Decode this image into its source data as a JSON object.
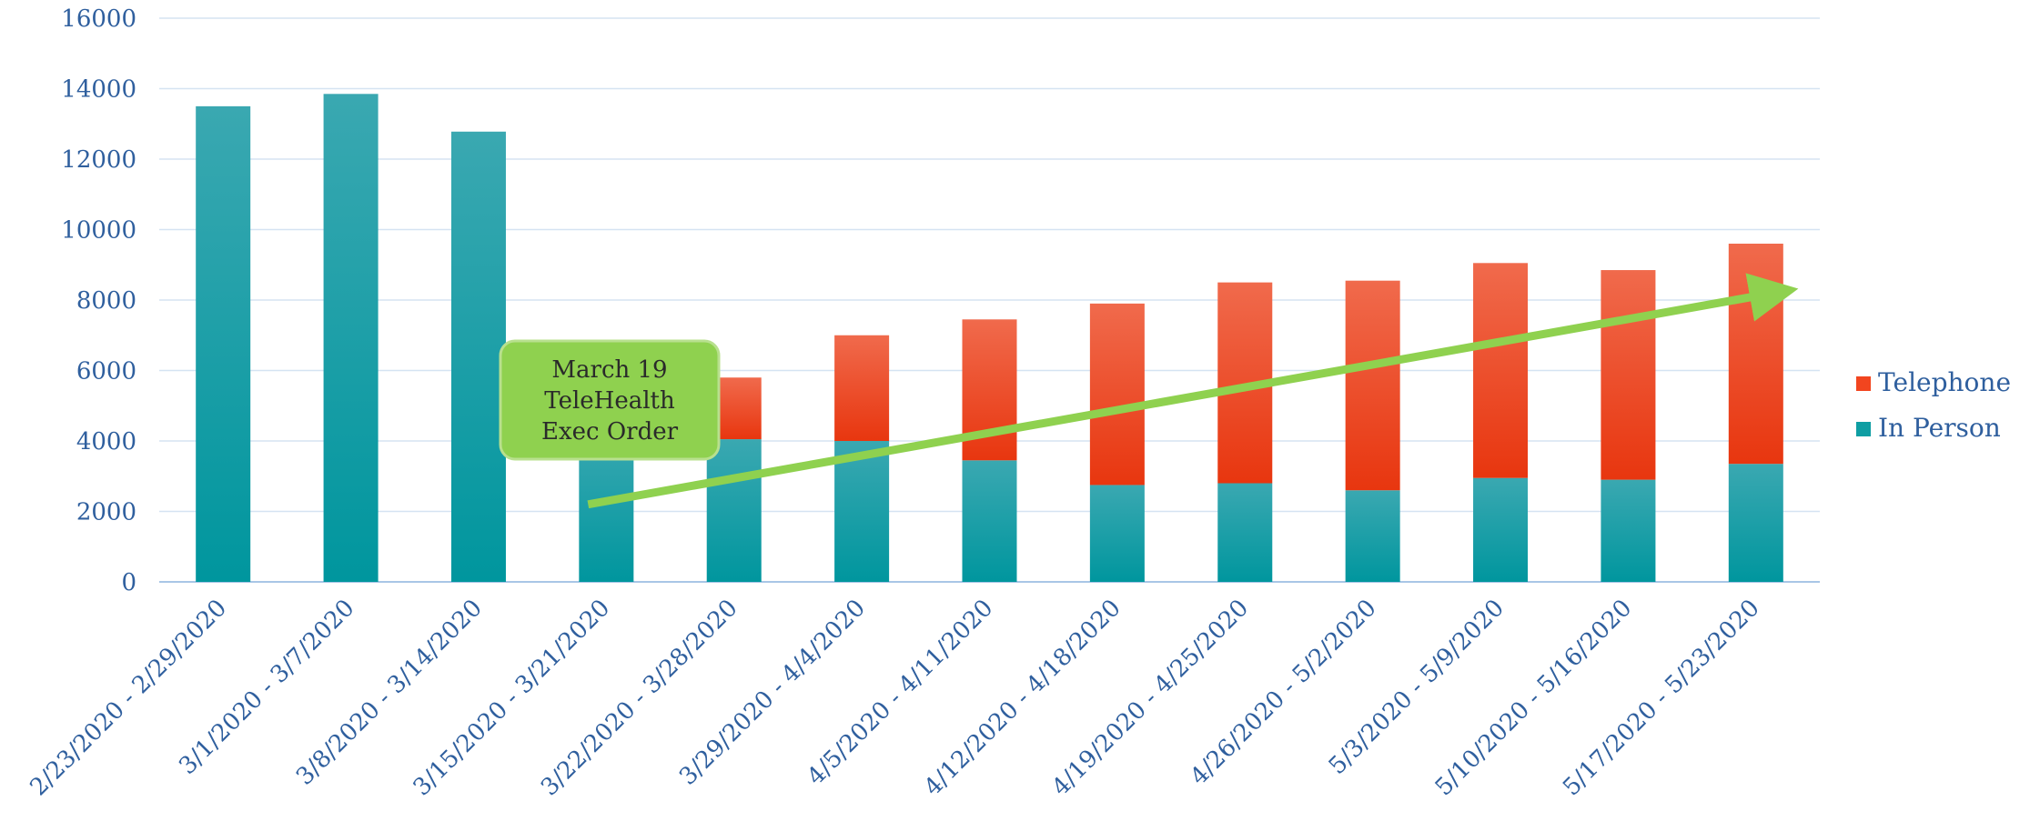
{
  "chart_data": {
    "type": "bar",
    "stacked": true,
    "categories": [
      "2/23/2020 - 2/29/2020",
      "3/1/2020 - 3/7/2020",
      "3/8/2020 - 3/14/2020",
      "3/15/2020 - 3/21/2020",
      "3/22/2020 - 3/28/2020",
      "3/29/2020 - 4/4/2020",
      "4/5/2020 - 4/11/2020",
      "4/12/2020 - 4/18/2020",
      "4/19/2020 - 4/25/2020",
      "4/26/2020 - 5/2/2020",
      "5/3/2020 - 5/9/2020",
      "5/10/2020 - 5/16/2020",
      "5/17/2020 - 5/23/2020"
    ],
    "series": [
      {
        "name": "In Person",
        "color": "#0f9ea3",
        "values": [
          13500,
          13850,
          12780,
          4300,
          4050,
          4000,
          3450,
          2750,
          2800,
          2600,
          2950,
          2900,
          3350
        ]
      },
      {
        "name": "Telephone",
        "color": "#f2451f",
        "values": [
          0,
          0,
          0,
          0,
          1750,
          3000,
          4000,
          5150,
          5700,
          5950,
          6100,
          5950,
          6250
        ]
      }
    ],
    "yticks": [
      0,
      2000,
      4000,
      6000,
      8000,
      10000,
      12000,
      14000,
      16000
    ],
    "ylim": [
      0,
      16000
    ],
    "grid": true,
    "legend_position": "right",
    "annotation": {
      "lines": [
        "March 19",
        "TeleHealth",
        "Exec Order"
      ],
      "color": "#8fd14f"
    },
    "trend_arrow": {
      "from": {
        "category": "3/15/2020 - 3/21/2020",
        "y": 2200
      },
      "to": {
        "category": "5/17/2020 - 5/23/2020",
        "y": 8200
      },
      "color": "#8fd14f"
    }
  }
}
